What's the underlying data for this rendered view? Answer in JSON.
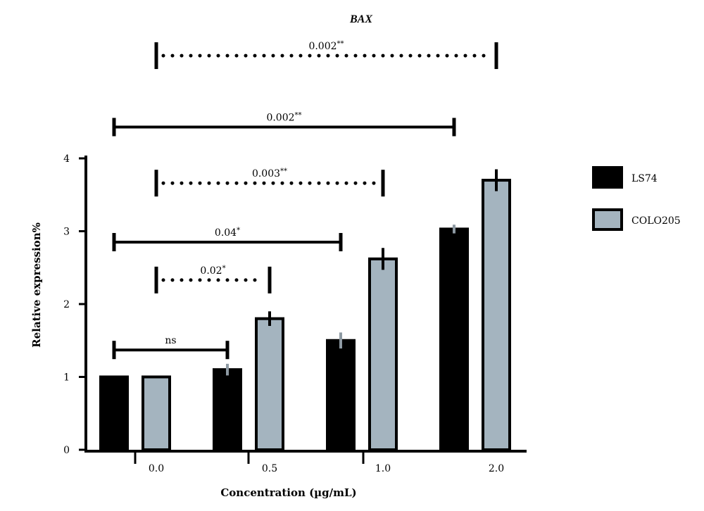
{
  "chart_data": {
    "type": "bar",
    "title": "BAX",
    "xlabel": "Concentration (µg/mL)",
    "ylabel": "Relative expression%",
    "categories": [
      "0.0",
      "0.5",
      "1.0",
      "2.0"
    ],
    "ylim": [
      0,
      4
    ],
    "yticks": [
      "0",
      "1",
      "2",
      "3",
      "4"
    ],
    "grid": false,
    "legend_position": "right",
    "series": [
      {
        "name": "LS74",
        "color": "#000000",
        "errcolor": "#8e9aa3",
        "values": [
          1.0,
          1.1,
          1.5,
          3.03
        ],
        "errors": [
          0.0,
          0.08,
          0.11,
          0.06
        ]
      },
      {
        "name": "COLO205",
        "color": "#a4b4bf",
        "errcolor": "#000000",
        "values": [
          1.0,
          1.8,
          2.62,
          3.7
        ],
        "errors": [
          0.0,
          0.1,
          0.15,
          0.15
        ]
      }
    ],
    "annotations": [
      {
        "text": "ns",
        "style": "solid",
        "y": 1.37,
        "from": [
          0,
          0
        ],
        "to": [
          1,
          0
        ]
      },
      {
        "text": "0.02*",
        "style": "dotted",
        "y": 2.33,
        "from": [
          0,
          1
        ],
        "to": [
          1,
          1
        ]
      },
      {
        "text": "0.04*",
        "style": "solid",
        "y": 2.85,
        "from": [
          0,
          0
        ],
        "to": [
          2,
          0
        ]
      },
      {
        "text": "0.003**",
        "style": "dotted",
        "y": 3.66,
        "from": [
          0,
          1
        ],
        "to": [
          2,
          1
        ]
      },
      {
        "text": "0.002**",
        "style": "solid",
        "y": 4.43,
        "from": [
          0,
          0
        ],
        "to": [
          3,
          0
        ]
      },
      {
        "text": "0.002**",
        "style": "dotted",
        "y": 5.41,
        "from": [
          0,
          1
        ],
        "to": [
          3,
          1
        ]
      }
    ]
  }
}
